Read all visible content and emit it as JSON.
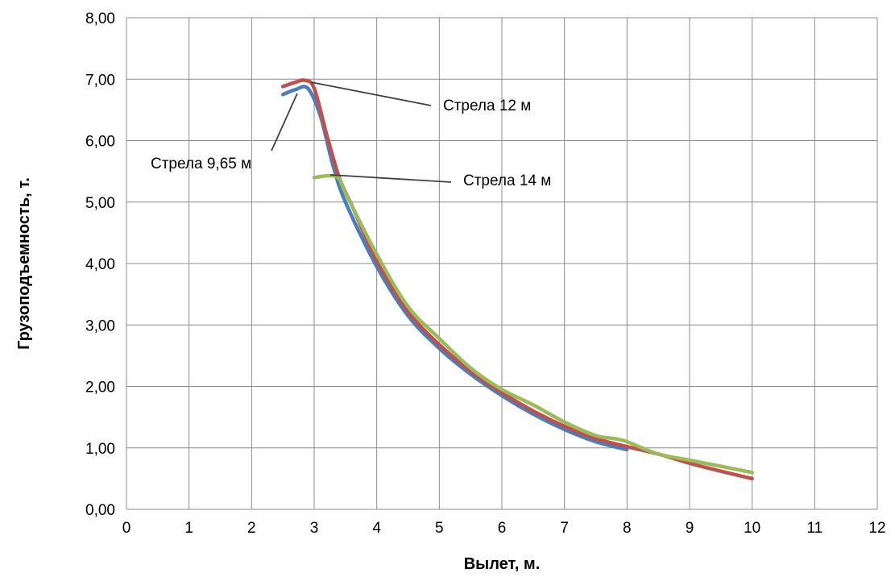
{
  "chart_data": {
    "type": "line",
    "title": "",
    "xlabel": "Вылет, м.",
    "ylabel": "Грузоподъемность, т.",
    "xlim": [
      0,
      12
    ],
    "ylim": [
      0,
      8
    ],
    "x_ticks": [
      0,
      1,
      2,
      3,
      4,
      5,
      6,
      7,
      8,
      9,
      10,
      11,
      12
    ],
    "y_ticks": [
      "0,00",
      "1,00",
      "2,00",
      "3,00",
      "4,00",
      "5,00",
      "6,00",
      "7,00",
      "8,00"
    ],
    "grid": true,
    "legend": "none",
    "series": [
      {
        "name": "Стрела 9,65 м",
        "color": "#4a7ebb",
        "points": [
          [
            2.5,
            6.75
          ],
          [
            2.7,
            6.83
          ],
          [
            2.9,
            6.85
          ],
          [
            3.1,
            6.4
          ],
          [
            3.3,
            5.6
          ],
          [
            3.5,
            5.0
          ],
          [
            4.0,
            3.95
          ],
          [
            4.5,
            3.15
          ],
          [
            5.0,
            2.62
          ],
          [
            5.5,
            2.2
          ],
          [
            6.0,
            1.85
          ],
          [
            6.5,
            1.55
          ],
          [
            7.0,
            1.3
          ],
          [
            7.5,
            1.1
          ],
          [
            8.0,
            0.97
          ]
        ]
      },
      {
        "name": "Стрела 12 м",
        "color": "#c0504d",
        "points": [
          [
            2.5,
            6.88
          ],
          [
            2.7,
            6.95
          ],
          [
            2.85,
            6.98
          ],
          [
            3.0,
            6.85
          ],
          [
            3.2,
            6.1
          ],
          [
            3.4,
            5.4
          ],
          [
            3.6,
            4.95
          ],
          [
            4.0,
            4.05
          ],
          [
            4.5,
            3.22
          ],
          [
            5.0,
            2.68
          ],
          [
            5.5,
            2.25
          ],
          [
            6.0,
            1.9
          ],
          [
            6.5,
            1.6
          ],
          [
            7.0,
            1.35
          ],
          [
            7.5,
            1.15
          ],
          [
            8.0,
            1.02
          ],
          [
            8.5,
            0.9
          ],
          [
            9.0,
            0.75
          ],
          [
            9.5,
            0.62
          ],
          [
            10.0,
            0.5
          ]
        ]
      },
      {
        "name": "Стрела 14 м",
        "color": "#9bbb59",
        "points": [
          [
            3.0,
            5.4
          ],
          [
            3.25,
            5.43
          ],
          [
            3.4,
            5.38
          ],
          [
            3.5,
            5.15
          ],
          [
            4.0,
            4.15
          ],
          [
            4.5,
            3.3
          ],
          [
            5.0,
            2.78
          ],
          [
            5.5,
            2.3
          ],
          [
            6.0,
            1.95
          ],
          [
            6.5,
            1.7
          ],
          [
            7.0,
            1.42
          ],
          [
            7.5,
            1.2
          ],
          [
            7.8,
            1.15
          ],
          [
            8.0,
            1.1
          ],
          [
            8.5,
            0.9
          ],
          [
            9.0,
            0.8
          ],
          [
            9.5,
            0.7
          ],
          [
            10.0,
            0.6
          ]
        ]
      }
    ],
    "annotations": [
      {
        "text": "Стрела 12 м",
        "series": 1
      },
      {
        "text": "Стрела 9,65 м",
        "series": 0
      },
      {
        "text": "Стрела 14 м",
        "series": 2
      }
    ]
  }
}
